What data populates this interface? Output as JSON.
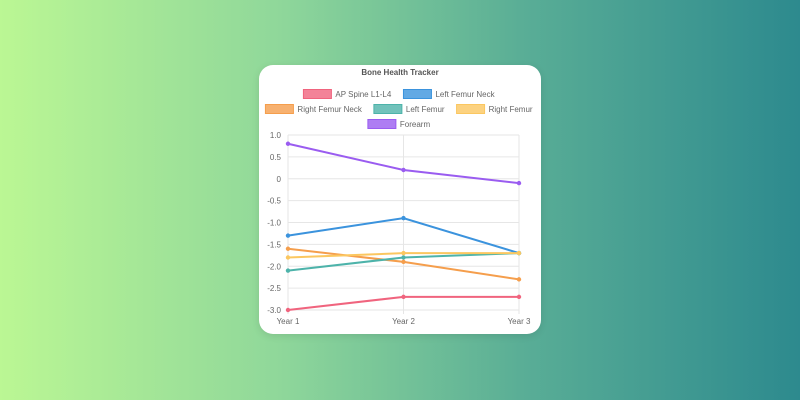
{
  "chart_data": {
    "type": "line",
    "title": "Bone Health Tracker",
    "categories": [
      "Year 1",
      "Year 2",
      "Year 3"
    ],
    "ylim": [
      -3.0,
      1.0
    ],
    "yticks": [
      "1.0",
      "0.5",
      "0",
      "-0.5",
      "-1.0",
      "-1.5",
      "-2.0",
      "-2.5",
      "-3.0"
    ],
    "grid": true,
    "legend": "top",
    "series": [
      {
        "name": "AP Spine L1-L4",
        "values": [
          -3.0,
          -2.7,
          -2.7
        ],
        "color": "#f0647e"
      },
      {
        "name": "Left Femur Neck",
        "values": [
          -1.3,
          -0.9,
          -1.7
        ],
        "color": "#3b93dd"
      },
      {
        "name": "Right Femur Neck",
        "values": [
          -1.6,
          -1.9,
          -2.3
        ],
        "color": "#f59e4c"
      },
      {
        "name": "Left Femur",
        "values": [
          -2.1,
          -1.8,
          -1.7
        ],
        "color": "#4db3aa"
      },
      {
        "name": "Right Femur",
        "values": [
          -1.8,
          -1.7,
          -1.7
        ],
        "color": "#fbc760"
      },
      {
        "name": "Forearm",
        "values": [
          0.8,
          0.2,
          -0.1
        ],
        "color": "#9a5cf0"
      }
    ]
  }
}
